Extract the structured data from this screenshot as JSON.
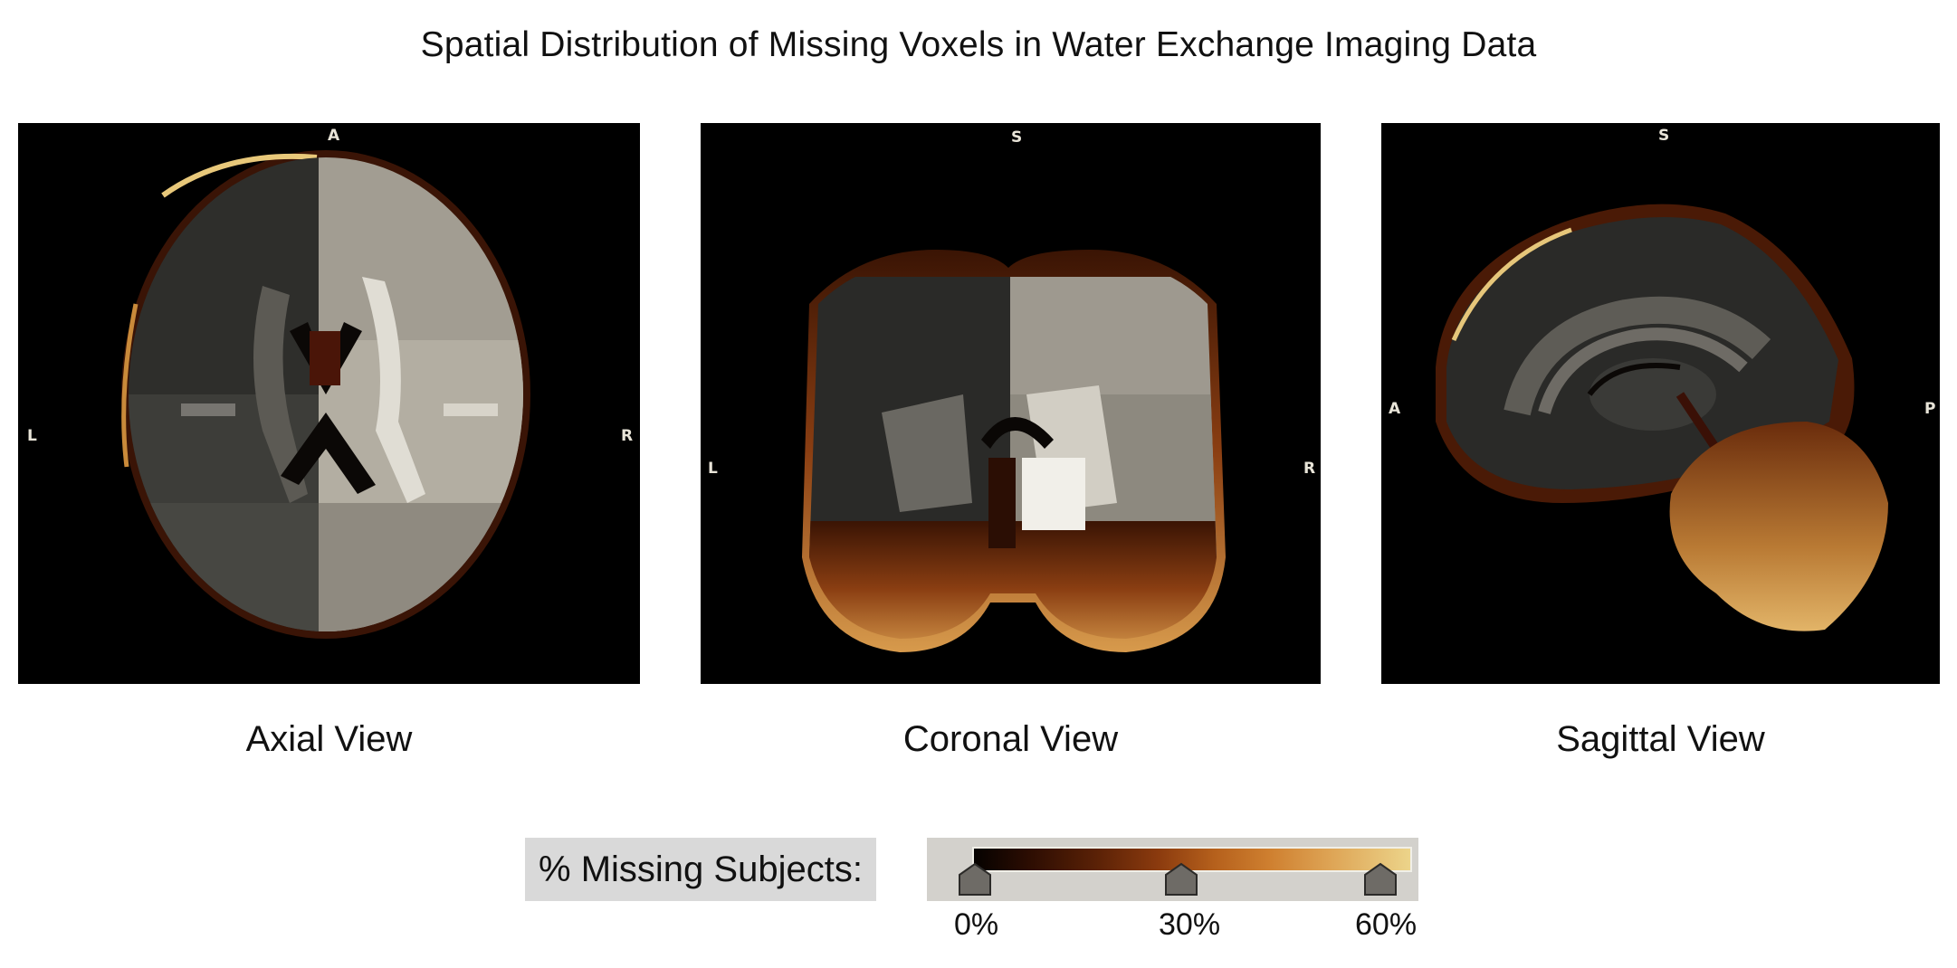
{
  "title": "Spatial Distribution of Missing Voxels in Water Exchange Imaging Data",
  "views": [
    {
      "caption": "Axial View",
      "orient": {
        "top": "A",
        "left": "L",
        "right": "R"
      }
    },
    {
      "caption": "Coronal View",
      "orient": {
        "top": "S",
        "left": "L",
        "right": "R"
      }
    },
    {
      "caption": "Sagittal View",
      "orient": {
        "top": "S",
        "left": "A",
        "right": "P"
      }
    }
  ],
  "legend": {
    "label": "% Missing Subjects:",
    "ticks": [
      "0%",
      "30%",
      "60%"
    ],
    "colormap": [
      "#050200",
      "#5a2106",
      "#b5601c",
      "#dea556",
      "#ecd48a"
    ]
  }
}
